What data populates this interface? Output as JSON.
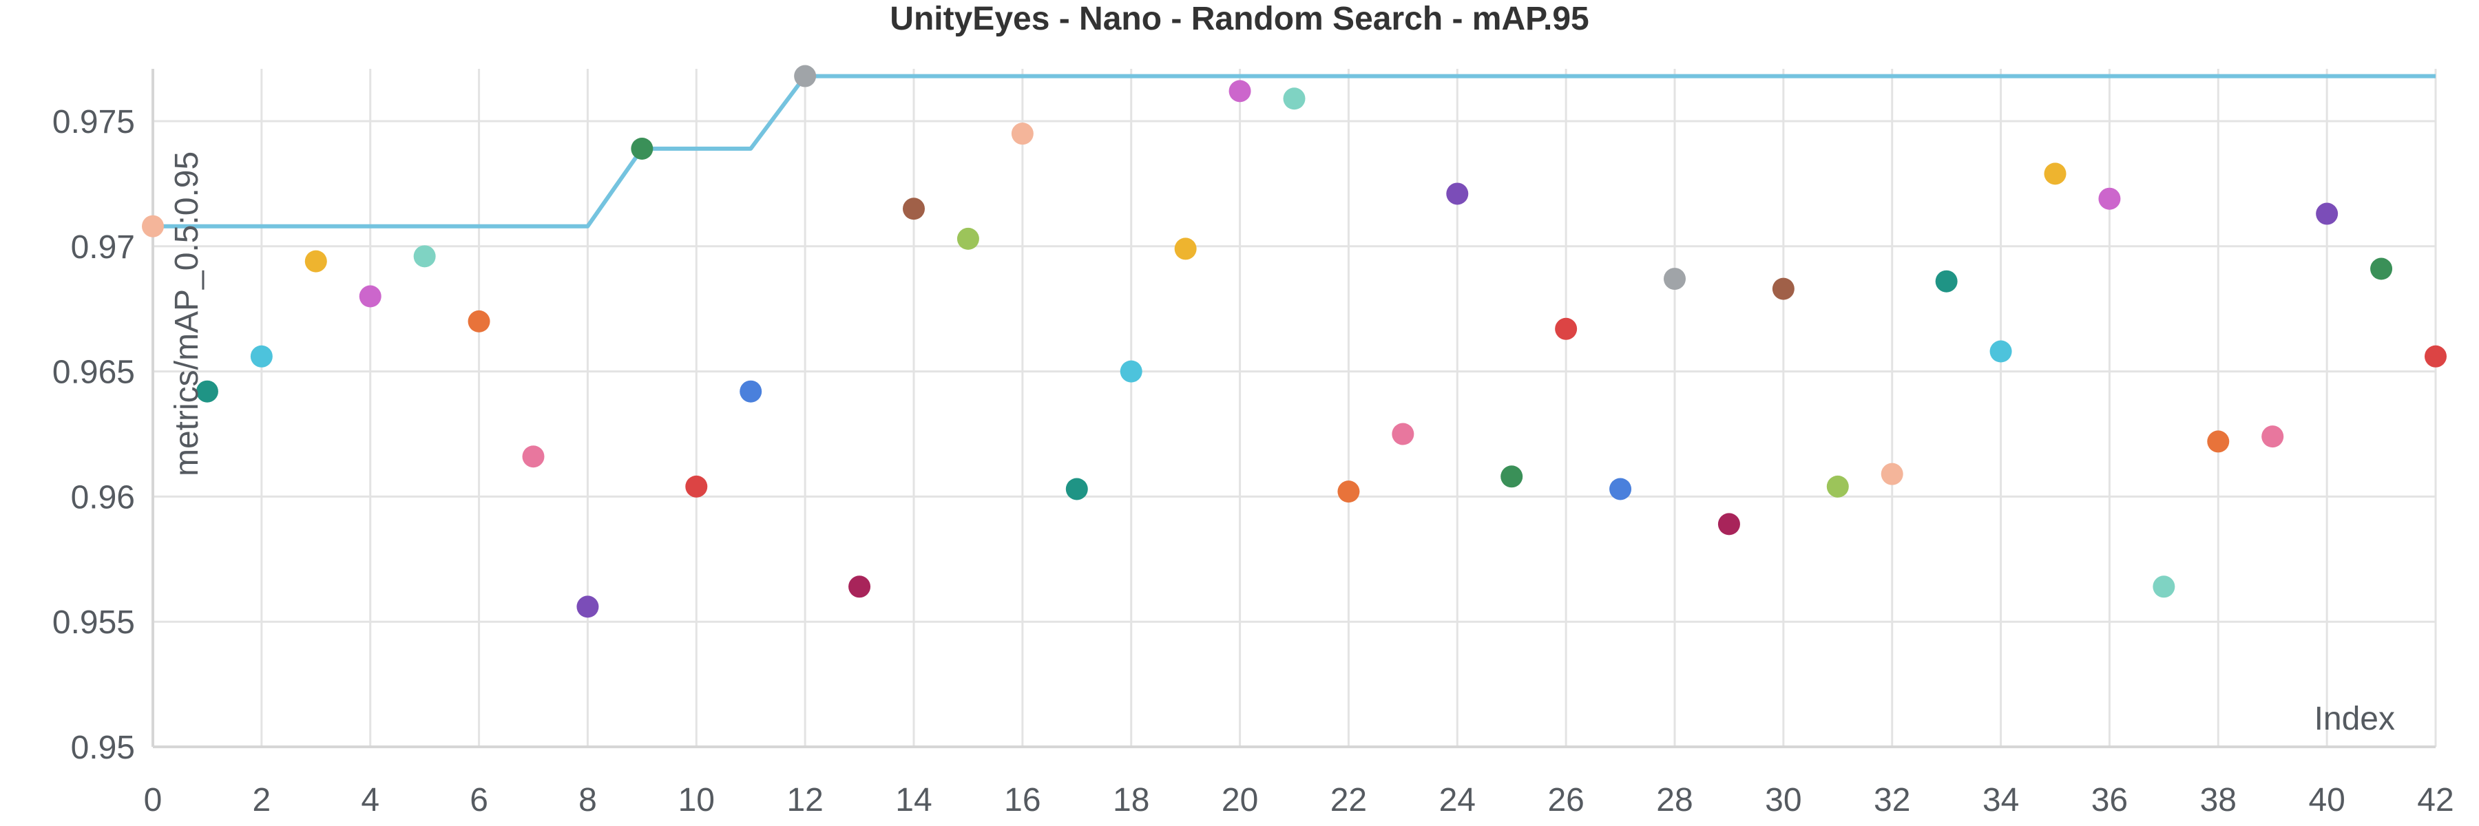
{
  "chart_data": {
    "type": "scatter",
    "title": "UnityEyes - Nano - Random Search - mAP.95",
    "xlabel": "Index",
    "ylabel": "metrics/mAP_0.5:0.95",
    "xlim": [
      0,
      42
    ],
    "ylim": [
      0.95,
      0.977
    ],
    "x_ticks": [
      0,
      2,
      4,
      6,
      8,
      10,
      12,
      14,
      16,
      18,
      20,
      22,
      24,
      26,
      28,
      30,
      32,
      34,
      36,
      38,
      40,
      42
    ],
    "y_ticks": [
      0.95,
      0.955,
      0.96,
      0.965,
      0.97,
      0.975
    ],
    "y_tick_labels": [
      "0.95",
      "0.955",
      "0.96",
      "0.965",
      "0.97",
      "0.975"
    ],
    "grid": true,
    "points": [
      {
        "x": 0,
        "y": 0.9708,
        "color": "#F4B59A"
      },
      {
        "x": 1,
        "y": 0.9642,
        "color": "#1F9485"
      },
      {
        "x": 2,
        "y": 0.9656,
        "color": "#4DC3DC"
      },
      {
        "x": 3,
        "y": 0.9694,
        "color": "#EEB42F"
      },
      {
        "x": 4,
        "y": 0.968,
        "color": "#CC66CC"
      },
      {
        "x": 5,
        "y": 0.9696,
        "color": "#7FD3C3"
      },
      {
        "x": 6,
        "y": 0.967,
        "color": "#E8733A"
      },
      {
        "x": 7,
        "y": 0.9616,
        "color": "#E8779E"
      },
      {
        "x": 8,
        "y": 0.9556,
        "color": "#7B4DB8"
      },
      {
        "x": 9,
        "y": 0.9739,
        "color": "#3A9058"
      },
      {
        "x": 10,
        "y": 0.9604,
        "color": "#DC4444"
      },
      {
        "x": 11,
        "y": 0.9642,
        "color": "#4A80DC"
      },
      {
        "x": 12,
        "y": 0.9768,
        "color": "#A0A4A8"
      },
      {
        "x": 13,
        "y": 0.9564,
        "color": "#A8245A"
      },
      {
        "x": 14,
        "y": 0.9715,
        "color": "#A06048"
      },
      {
        "x": 15,
        "y": 0.9703,
        "color": "#9CC45A"
      },
      {
        "x": 16,
        "y": 0.9745,
        "color": "#F4B59A"
      },
      {
        "x": 17,
        "y": 0.9603,
        "color": "#1F9485"
      },
      {
        "x": 18,
        "y": 0.965,
        "color": "#4DC3DC"
      },
      {
        "x": 19,
        "y": 0.9699,
        "color": "#EEB42F"
      },
      {
        "x": 20,
        "y": 0.9762,
        "color": "#CC66CC"
      },
      {
        "x": 21,
        "y": 0.9759,
        "color": "#7FD3C3"
      },
      {
        "x": 22,
        "y": 0.9602,
        "color": "#E8733A"
      },
      {
        "x": 23,
        "y": 0.9625,
        "color": "#E8779E"
      },
      {
        "x": 24,
        "y": 0.9721,
        "color": "#7B4DB8"
      },
      {
        "x": 25,
        "y": 0.9608,
        "color": "#3A9058"
      },
      {
        "x": 26,
        "y": 0.9667,
        "color": "#DC4444"
      },
      {
        "x": 27,
        "y": 0.9603,
        "color": "#4A80DC"
      },
      {
        "x": 28,
        "y": 0.9687,
        "color": "#A0A4A8"
      },
      {
        "x": 29,
        "y": 0.9589,
        "color": "#A8245A"
      },
      {
        "x": 30,
        "y": 0.9683,
        "color": "#A06048"
      },
      {
        "x": 31,
        "y": 0.9604,
        "color": "#9CC45A"
      },
      {
        "x": 32,
        "y": 0.9609,
        "color": "#F4B59A"
      },
      {
        "x": 33,
        "y": 0.9686,
        "color": "#1F9485"
      },
      {
        "x": 34,
        "y": 0.9658,
        "color": "#4DC3DC"
      },
      {
        "x": 35,
        "y": 0.9729,
        "color": "#EEB42F"
      },
      {
        "x": 36,
        "y": 0.9719,
        "color": "#CC66CC"
      },
      {
        "x": 37,
        "y": 0.9564,
        "color": "#7FD3C3"
      },
      {
        "x": 38,
        "y": 0.9622,
        "color": "#E8733A"
      },
      {
        "x": 39,
        "y": 0.9624,
        "color": "#E8779E"
      },
      {
        "x": 40,
        "y": 0.9713,
        "color": "#7B4DB8"
      },
      {
        "x": 41,
        "y": 0.9691,
        "color": "#3A9058"
      },
      {
        "x": 42,
        "y": 0.9656,
        "color": "#DC4444"
      }
    ],
    "best_line": {
      "color": "#74C3DF",
      "x": [
        0,
        8,
        9,
        11,
        12,
        42
      ],
      "y": [
        0.9708,
        0.9708,
        0.9739,
        0.9739,
        0.9768,
        0.9768
      ]
    }
  }
}
